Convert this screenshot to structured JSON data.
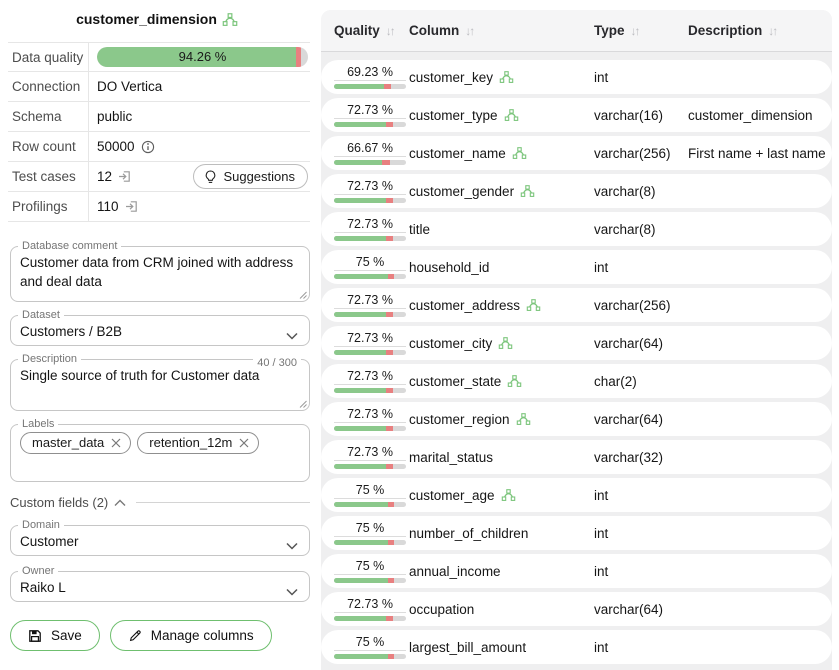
{
  "panel": {
    "title": "customer_dimension",
    "info": {
      "data_quality": {
        "label": "Data quality",
        "value": "94.26 %",
        "percent": 94.26,
        "fail_percent": 2.3
      },
      "connection": {
        "label": "Connection",
        "value": "DO Vertica"
      },
      "schema": {
        "label": "Schema",
        "value": "public"
      },
      "row_count": {
        "label": "Row count",
        "value": "50000"
      },
      "test_cases": {
        "label": "Test cases",
        "value": "12",
        "button": "Suggestions"
      },
      "profilings": {
        "label": "Profilings",
        "value": "110"
      }
    },
    "fields": {
      "database_comment": {
        "label": "Database comment",
        "value": "Customer data from CRM joined with address and deal data"
      },
      "dataset": {
        "label": "Dataset",
        "value": "Customers / B2B"
      },
      "description": {
        "label": "Description",
        "value": "Single source of truth for Customer data",
        "counter": "40 / 300"
      },
      "labels": {
        "label": "Labels",
        "chips": [
          "master_data",
          "retention_12m"
        ]
      },
      "custom_fields_label": "Custom fields (2)",
      "domain": {
        "label": "Domain",
        "value": "Customer"
      },
      "owner": {
        "label": "Owner",
        "value": "Raiko L"
      }
    },
    "actions": {
      "save": "Save",
      "manage_columns": "Manage columns"
    }
  },
  "table": {
    "headers": {
      "quality": "Quality",
      "column": "Column",
      "type": "Type",
      "description": "Description"
    },
    "rows": [
      {
        "quality": "69.23 %",
        "percent": 69.23,
        "fail": 9.5,
        "column": "customer_key",
        "monitored": true,
        "type": "int",
        "description": ""
      },
      {
        "quality": "72.73 %",
        "percent": 72.73,
        "fail": 9.0,
        "column": "customer_type",
        "monitored": true,
        "type": "varchar(16)",
        "description": "customer_dimension"
      },
      {
        "quality": "66.67 %",
        "percent": 66.67,
        "fail": 11.0,
        "column": "customer_name",
        "monitored": true,
        "type": "varchar(256)",
        "description": "First name + last name"
      },
      {
        "quality": "72.73 %",
        "percent": 72.73,
        "fail": 9.0,
        "column": "customer_gender",
        "monitored": true,
        "type": "varchar(8)",
        "description": ""
      },
      {
        "quality": "72.73 %",
        "percent": 72.73,
        "fail": 9.0,
        "column": "title",
        "monitored": false,
        "type": "varchar(8)",
        "description": ""
      },
      {
        "quality": "75 %",
        "percent": 75,
        "fail": 8.0,
        "column": "household_id",
        "monitored": false,
        "type": "int",
        "description": ""
      },
      {
        "quality": "72.73 %",
        "percent": 72.73,
        "fail": 9.0,
        "column": "customer_address",
        "monitored": true,
        "type": "varchar(256)",
        "description": ""
      },
      {
        "quality": "72.73 %",
        "percent": 72.73,
        "fail": 9.0,
        "column": "customer_city",
        "monitored": true,
        "type": "varchar(64)",
        "description": ""
      },
      {
        "quality": "72.73 %",
        "percent": 72.73,
        "fail": 9.0,
        "column": "customer_state",
        "monitored": true,
        "type": "char(2)",
        "description": ""
      },
      {
        "quality": "72.73 %",
        "percent": 72.73,
        "fail": 9.0,
        "column": "customer_region",
        "monitored": true,
        "type": "varchar(64)",
        "description": ""
      },
      {
        "quality": "72.73 %",
        "percent": 72.73,
        "fail": 9.0,
        "column": "marital_status",
        "monitored": false,
        "type": "varchar(32)",
        "description": ""
      },
      {
        "quality": "75 %",
        "percent": 75,
        "fail": 8.0,
        "column": "customer_age",
        "monitored": true,
        "type": "int",
        "description": ""
      },
      {
        "quality": "75 %",
        "percent": 75,
        "fail": 8.0,
        "column": "number_of_children",
        "monitored": false,
        "type": "int",
        "description": ""
      },
      {
        "quality": "75 %",
        "percent": 75,
        "fail": 8.0,
        "column": "annual_income",
        "monitored": false,
        "type": "int",
        "description": ""
      },
      {
        "quality": "72.73 %",
        "percent": 72.73,
        "fail": 9.0,
        "column": "occupation",
        "monitored": false,
        "type": "varchar(64)",
        "description": ""
      },
      {
        "quality": "75 %",
        "percent": 75,
        "fail": 8.0,
        "column": "largest_bill_amount",
        "monitored": false,
        "type": "int",
        "description": ""
      }
    ]
  },
  "colors": {
    "bar_green": "#8bc88b",
    "bar_red": "#e88080",
    "bar_track": "#d9d9d9",
    "accent_green": "#6fbf6f",
    "icon_green": "#7cc57c"
  }
}
